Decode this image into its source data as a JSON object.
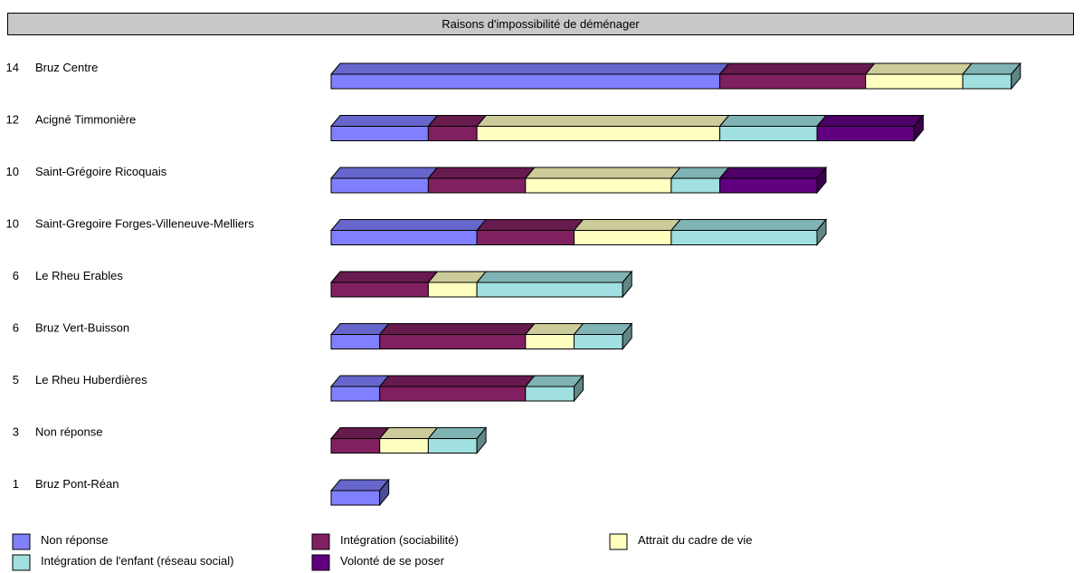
{
  "chart_data": {
    "type": "bar",
    "orientation": "horizontal",
    "stacked": true,
    "three_d": true,
    "title": "Raisons d'impossibilité de déménager",
    "categories": [
      {
        "count": "14",
        "label": "Bruz Centre"
      },
      {
        "count": "12",
        "label": "Acigné Timmonière"
      },
      {
        "count": "10",
        "label": "Saint-Grégoire Ricoquais"
      },
      {
        "count": "10",
        "label": "Saint-Gregoire Forges-Villeneuve-Melliers"
      },
      {
        "count": "6",
        "label": "Le Rheu Erables"
      },
      {
        "count": "6",
        "label": "Bruz Vert-Buisson"
      },
      {
        "count": "5",
        "label": "Le Rheu Huberdières"
      },
      {
        "count": "3",
        "label": "Non réponse"
      },
      {
        "count": "1",
        "label": "Bruz Pont-Réan"
      }
    ],
    "series": [
      {
        "name": "Non réponse",
        "color": "#8080ff",
        "values": [
          8,
          2,
          2,
          3,
          0,
          1,
          1,
          0,
          1
        ]
      },
      {
        "name": "Intégration (sociabilité)",
        "color": "#802060",
        "values": [
          3,
          1,
          2,
          2,
          2,
          3,
          3,
          1,
          0
        ]
      },
      {
        "name": "Attrait du cadre de vie",
        "color": "#ffffc0",
        "values": [
          2,
          5,
          3,
          2,
          1,
          1,
          0,
          1,
          0
        ]
      },
      {
        "name": "Intégration de l'enfant (réseau social)",
        "color": "#a0e0e0",
        "values": [
          1,
          2,
          1,
          3,
          3,
          1,
          1,
          1,
          0
        ]
      },
      {
        "name": "Volonté de se poser",
        "color": "#600080",
        "values": [
          0,
          2,
          2,
          0,
          0,
          0,
          0,
          0,
          0
        ]
      }
    ],
    "legend_position": "bottom",
    "grid": false
  }
}
